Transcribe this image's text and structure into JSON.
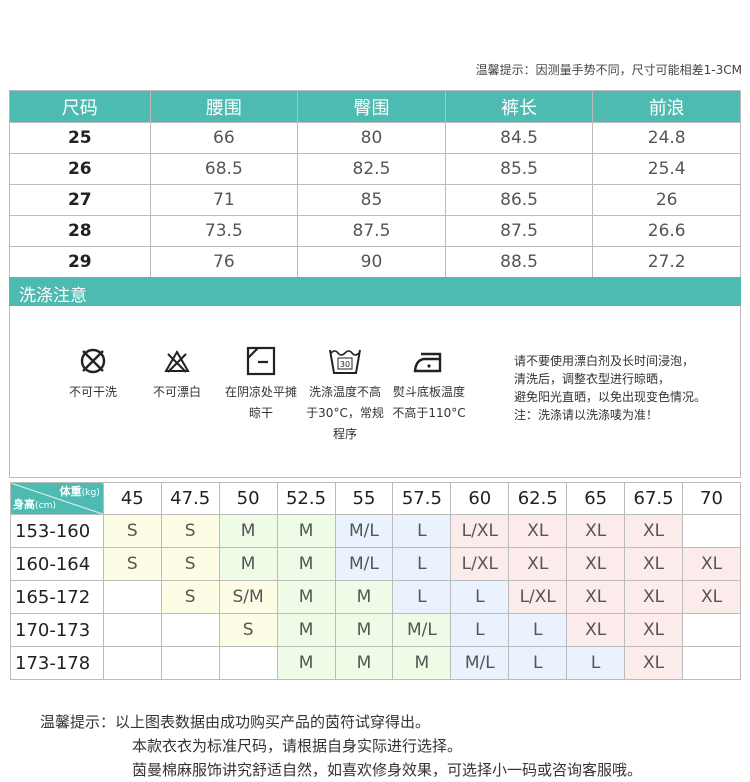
{
  "tip": "温馨提示：因测量手势不同，尺寸可能相差1-3CM",
  "size_table": {
    "headers": [
      "尺码",
      "腰围",
      "臀围",
      "裤长",
      "前浪"
    ],
    "rows": [
      [
        "25",
        "66",
        "80",
        "84.5",
        "24.8"
      ],
      [
        "26",
        "68.5",
        "82.5",
        "85.5",
        "25.4"
      ],
      [
        "27",
        "71",
        "85",
        "86.5",
        "26"
      ],
      [
        "28",
        "73.5",
        "87.5",
        "87.5",
        "26.6"
      ],
      [
        "29",
        "76",
        "90",
        "88.5",
        "27.2"
      ]
    ]
  },
  "wash": {
    "title": "洗涤注意",
    "items": [
      {
        "icon": "no-dry-clean-icon",
        "label": "不可干洗"
      },
      {
        "icon": "no-bleach-icon",
        "label": "不可漂白"
      },
      {
        "icon": "dry-flat-shade-icon",
        "label": "在阴凉处平摊晾干"
      },
      {
        "icon": "wash-30-icon",
        "label": "洗涤温度不高于30°C，常规程序"
      },
      {
        "icon": "iron-icon",
        "label": "熨斗底板温度不高于110°C"
      }
    ],
    "wash_temp": "30",
    "note": [
      "请不要使用漂白剂及长时间浸泡，",
      "清洗后，调整衣型进行晾晒，",
      "避免阳光直晒，以免出现变色情况。",
      "注：洗涤请以洗涤唛为准！"
    ]
  },
  "fit_table": {
    "weight_label": "体重",
    "weight_unit": "(kg)",
    "height_label": "身高",
    "height_unit": "(cm)",
    "weights": [
      "45",
      "47.5",
      "50",
      "52.5",
      "55",
      "57.5",
      "60",
      "62.5",
      "65",
      "67.5",
      "70"
    ],
    "colors": {
      "S": "#fdfde6",
      "M": "#eefbe7",
      "L": "#eaf3fd",
      "XL": "#fcebeb"
    },
    "rows": [
      {
        "height": "153-160",
        "cells": [
          [
            "S",
            "y"
          ],
          [
            "S",
            "y"
          ],
          [
            "M",
            "g"
          ],
          [
            "M",
            "g"
          ],
          [
            "M/L",
            "b"
          ],
          [
            "L",
            "b"
          ],
          [
            "L/XL",
            "p"
          ],
          [
            "XL",
            "p"
          ],
          [
            "XL",
            "p"
          ],
          [
            "XL",
            "p"
          ],
          [
            "",
            ""
          ]
        ]
      },
      {
        "height": "160-164",
        "cells": [
          [
            "S",
            "y"
          ],
          [
            "S",
            "y"
          ],
          [
            "M",
            "g"
          ],
          [
            "M",
            "g"
          ],
          [
            "M/L",
            "b"
          ],
          [
            "L",
            "b"
          ],
          [
            "L/XL",
            "p"
          ],
          [
            "XL",
            "p"
          ],
          [
            "XL",
            "p"
          ],
          [
            "XL",
            "p"
          ],
          [
            "XL",
            "p"
          ]
        ]
      },
      {
        "height": "165-172",
        "cells": [
          [
            "",
            ""
          ],
          [
            "S",
            "y"
          ],
          [
            "S/M",
            "y"
          ],
          [
            "M",
            "g"
          ],
          [
            "M",
            "g"
          ],
          [
            "L",
            "b"
          ],
          [
            "L",
            "b"
          ],
          [
            "L/XL",
            "p"
          ],
          [
            "XL",
            "p"
          ],
          [
            "XL",
            "p"
          ],
          [
            "XL",
            "p"
          ]
        ]
      },
      {
        "height": "170-173",
        "cells": [
          [
            "",
            ""
          ],
          [
            "",
            ""
          ],
          [
            "S",
            "y"
          ],
          [
            "M",
            "g"
          ],
          [
            "M",
            "g"
          ],
          [
            "M/L",
            "g"
          ],
          [
            "L",
            "b"
          ],
          [
            "L",
            "b"
          ],
          [
            "XL",
            "p"
          ],
          [
            "XL",
            "p"
          ],
          [
            "",
            ""
          ]
        ]
      },
      {
        "height": "173-178",
        "cells": [
          [
            "",
            ""
          ],
          [
            "",
            ""
          ],
          [
            "",
            ""
          ],
          [
            "M",
            "g"
          ],
          [
            "M",
            "g"
          ],
          [
            "M",
            "g"
          ],
          [
            "M/L",
            "b"
          ],
          [
            "L",
            "b"
          ],
          [
            "L",
            "b"
          ],
          [
            "XL",
            "p"
          ],
          [
            "",
            ""
          ]
        ]
      }
    ]
  },
  "footer": {
    "label": "温馨提示：",
    "lines": [
      "以上图表数据由成功购买产品的茵符试穿得出。",
      "本款衣衣为标准尺码，请根据自身实际进行选择。",
      "茵曼棉麻服饰讲究舒适自然，如喜欢修身效果，可选择小一码或咨询客服哦。"
    ]
  }
}
